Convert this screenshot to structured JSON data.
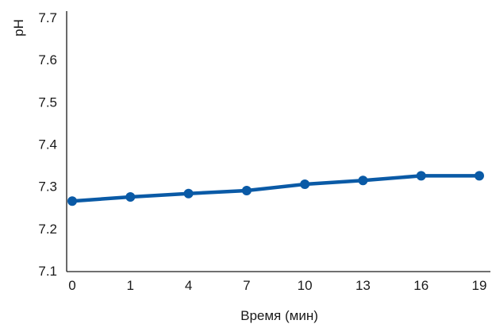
{
  "chart_data": {
    "type": "line",
    "xlabel": "Время (мин)",
    "ylabel": "pH",
    "categories": [
      "0",
      "1",
      "4",
      "7",
      "10",
      "13",
      "16",
      "19"
    ],
    "yticks": [
      "7.1",
      "7.2",
      "7.3",
      "7.4",
      "7.5",
      "7.6",
      "7.7"
    ],
    "ylim": [
      7.1,
      7.7
    ],
    "grid": false,
    "series": [
      {
        "values": [
          7.265,
          7.275,
          7.283,
          7.29,
          7.305,
          7.314,
          7.325,
          7.325
        ],
        "color": "#0a5aa6"
      }
    ]
  }
}
